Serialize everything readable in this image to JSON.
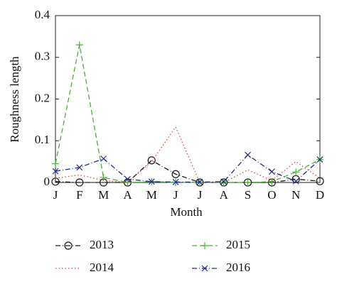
{
  "chart_data": {
    "type": "line",
    "x_label": "Month",
    "y_label": "Roughness length",
    "categories": [
      "J",
      "F",
      "M",
      "A",
      "M",
      "J",
      "J",
      "A",
      "S",
      "O",
      "N",
      "D"
    ],
    "series": [
      {
        "name": "2013",
        "color": "#1a1a1a",
        "linestyle": "dashdot",
        "marker": "o",
        "values": [
          0.002,
          0,
          0,
          0,
          0.053,
          0.02,
          0,
          0,
          0,
          0,
          0.008,
          0.003
        ]
      },
      {
        "name": "2014",
        "color": "#e8413c",
        "linestyle": "dotted",
        "marker": "none",
        "values": [
          0.01,
          0.018,
          0.005,
          0,
          0.05,
          0.133,
          0,
          0,
          0.03,
          0.005,
          0.05,
          0.01
        ]
      },
      {
        "name": "2015",
        "color": "#4caf3a",
        "linestyle": "dashed",
        "marker": "+",
        "values": [
          0.045,
          0.33,
          0.012,
          0,
          0.002,
          0,
          0,
          0,
          0,
          0.002,
          0.025,
          0.055
        ]
      },
      {
        "name": "2016",
        "color": "#1f2a8a",
        "linestyle": "dashdot",
        "marker": "x",
        "values": [
          0.027,
          0.036,
          0.057,
          0.008,
          0.002,
          0.001,
          0.001,
          0.002,
          0.066,
          0.026,
          0.003,
          0.055
        ]
      }
    ],
    "ylim": [
      0,
      0.4
    ],
    "yticks": [
      0,
      0.1,
      0.2,
      0.3,
      0.4
    ],
    "grid": false,
    "legend": "bottom"
  }
}
